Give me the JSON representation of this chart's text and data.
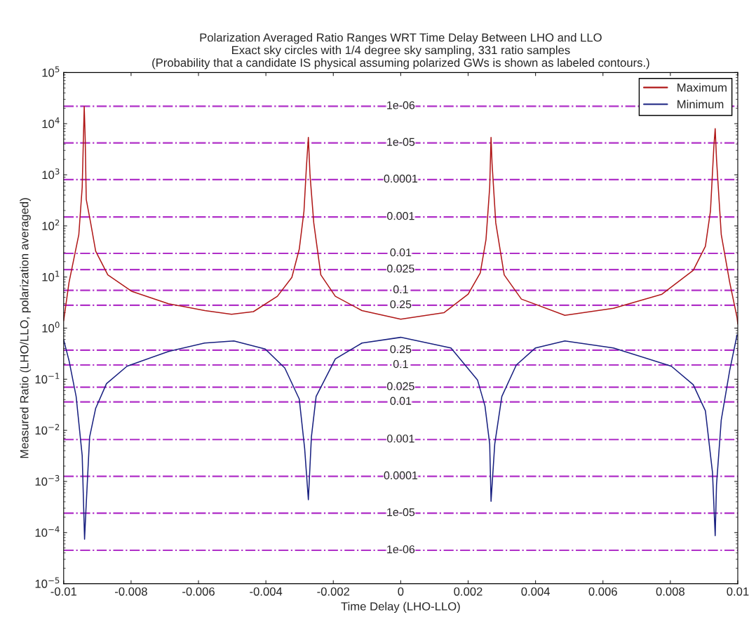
{
  "chart_data": {
    "type": "line",
    "title": "Polarization Averaged Ratio Ranges WRT Time Delay Between LHO and LLO",
    "subtitle": "Exact sky circles with 1/4 degree sky sampling, 331 ratio samples\n(Probability that a candidate IS physical assuming polarized GWs is shown as labeled contours.)",
    "xlabel": "Time Delay (LHO-LLO)",
    "ylabel": "Measured Ratio (LHO/LLO, polarization averaged)",
    "log": "y",
    "xlim": [
      -0.01,
      0.01
    ],
    "xticks": [
      -0.01,
      -0.008,
      -0.006,
      -0.004,
      -0.002,
      0,
      0.002,
      0.004,
      0.006,
      0.008,
      0.01
    ],
    "ylim": [
      1e-05,
      100000
    ],
    "yticks": [
      {
        "value": 1e-05,
        "label": "10$^{−5}$"
      },
      {
        "value": 0.0001,
        "label": "10$^{−4}$"
      },
      {
        "value": 0.001,
        "label": "10$^{−3}$"
      },
      {
        "value": 0.01,
        "label": "10$^{−2}$"
      },
      {
        "value": 0.1,
        "label": "10$^{−1}$"
      },
      {
        "value": 1,
        "label": "10$^{0}$"
      },
      {
        "value": 10,
        "label": "10$^{1}$"
      },
      {
        "value": 100,
        "label": "10$^{2}$"
      },
      {
        "value": 1000,
        "label": "10$^{3}$"
      },
      {
        "value": 10000,
        "label": "10$^{4}$"
      },
      {
        "value": 100000,
        "label": "10$^{5}$"
      }
    ],
    "grid": false,
    "annotations": [
      {
        "text": "1e-06",
        "y": 22000
      },
      {
        "text": "1e-05",
        "y": 4200
      },
      {
        "text": "0.0001",
        "y": 805
      },
      {
        "text": "0.001",
        "y": 150
      },
      {
        "text": "0.01",
        "y": 29
      },
      {
        "text": "0.025",
        "y": 14
      },
      {
        "text": "0.1",
        "y": 5.5
      },
      {
        "text": "0.25",
        "y": 2.8
      },
      {
        "text": "0.25",
        "y": 0.37
      },
      {
        "text": "0.1",
        "y": 0.19
      },
      {
        "text": "0.025",
        "y": 0.07
      },
      {
        "text": "0.01",
        "y": 0.036
      },
      {
        "text": "0.001",
        "y": 0.0066
      },
      {
        "text": "0.0001",
        "y": 0.00126
      },
      {
        "text": "1e-05",
        "y": 0.00024
      },
      {
        "text": "1e-06",
        "y": 4.5e-05
      }
    ],
    "legend": "top right",
    "series": [
      {
        "name": "Maximum",
        "color": "#b01818",
        "x": [
          -0.01,
          -0.00984,
          -0.00955,
          -0.00945,
          -0.00939,
          -0.00936,
          -0.00933,
          -0.0092,
          -0.00905,
          -0.00869,
          -0.00797,
          -0.00689,
          -0.00581,
          -0.00502,
          -0.00437,
          -0.00366,
          -0.00323,
          -0.00301,
          -0.00287,
          -0.0028,
          -0.00274,
          -0.00269,
          -0.00258,
          -0.00237,
          -0.00194,
          -0.00115,
          0.0,
          0.00128,
          0.002,
          0.00236,
          0.00253,
          0.00264,
          0.00268,
          0.00271,
          0.00282,
          0.00307,
          0.00358,
          0.00487,
          0.00631,
          0.00775,
          0.00868,
          0.00904,
          0.00919,
          0.00929,
          0.00933,
          0.00937,
          0.00951,
          0.00976,
          0.00998,
          0.01
        ],
        "values": [
          1.4,
          7.9,
          68,
          571,
          21700,
          4870,
          330,
          115,
          32,
          11,
          5.2,
          3.0,
          2.2,
          1.86,
          2.1,
          4.2,
          9.8,
          35,
          195,
          1350,
          5400,
          980,
          115,
          11,
          4.2,
          2.2,
          1.5,
          2.0,
          4.6,
          12,
          54,
          570,
          5400,
          1660,
          115,
          11,
          3.7,
          1.78,
          2.45,
          4.6,
          13.5,
          40,
          195,
          3520,
          8000,
          2000,
          68,
          7.9,
          1.6,
          1.2
        ]
      },
      {
        "name": "Minimum",
        "color": "#182080",
        "x": [
          -0.01,
          -0.00984,
          -0.00963,
          -0.00945,
          -0.00938,
          -0.00934,
          -0.00923,
          -0.00905,
          -0.00873,
          -0.00812,
          -0.00689,
          -0.00582,
          -0.00495,
          -0.00402,
          -0.00344,
          -0.00301,
          -0.00285,
          -0.00274,
          -0.00265,
          -0.00251,
          -0.00194,
          -0.00115,
          0.0,
          0.00149,
          0.00228,
          0.0025,
          0.00264,
          0.00268,
          0.00279,
          0.003,
          0.00343,
          0.004,
          0.00487,
          0.00631,
          0.00803,
          0.00868,
          0.00904,
          0.00925,
          0.00933,
          0.00937,
          0.00951,
          0.00976,
          0.00998
        ],
        "values": [
          0.59,
          0.23,
          0.046,
          0.0032,
          7.4e-05,
          0.00027,
          0.0074,
          0.027,
          0.082,
          0.18,
          0.35,
          0.51,
          0.56,
          0.39,
          0.166,
          0.041,
          0.0044,
          0.00044,
          0.0074,
          0.046,
          0.25,
          0.51,
          0.66,
          0.41,
          0.096,
          0.03,
          0.0054,
          0.00041,
          0.0054,
          0.046,
          0.19,
          0.41,
          0.56,
          0.41,
          0.18,
          0.078,
          0.024,
          0.0015,
          8.7e-05,
          0.00087,
          0.016,
          0.148,
          0.74
        ]
      }
    ],
    "ref_lines": [
      {
        "axis": "y",
        "value": 22000,
        "color": "#b030c8",
        "line_style": "dashdot"
      },
      {
        "axis": "y",
        "value": 4200,
        "color": "#b030c8",
        "line_style": "dashdot"
      },
      {
        "axis": "y",
        "value": 805,
        "color": "#b030c8",
        "line_style": "dashdot"
      },
      {
        "axis": "y",
        "value": 150,
        "color": "#b030c8",
        "line_style": "dashdot"
      },
      {
        "axis": "y",
        "value": 29,
        "color": "#b030c8",
        "line_style": "dashdot"
      },
      {
        "axis": "y",
        "value": 14,
        "color": "#b030c8",
        "line_style": "dashdot"
      },
      {
        "axis": "y",
        "value": 5.5,
        "color": "#b030c8",
        "line_style": "dashdot"
      },
      {
        "axis": "y",
        "value": 2.8,
        "color": "#b030c8",
        "line_style": "dashdot"
      },
      {
        "axis": "y",
        "value": 0.37,
        "color": "#b030c8",
        "line_style": "dashdot"
      },
      {
        "axis": "y",
        "value": 0.19,
        "color": "#b030c8",
        "line_style": "dashdot"
      },
      {
        "axis": "y",
        "value": 0.07,
        "color": "#b030c8",
        "line_style": "dashdot"
      },
      {
        "axis": "y",
        "value": 0.036,
        "color": "#b030c8",
        "line_style": "dashdot"
      },
      {
        "axis": "y",
        "value": 0.0066,
        "color": "#b030c8",
        "line_style": "dashdot"
      },
      {
        "axis": "y",
        "value": 0.00126,
        "color": "#b030c8",
        "line_style": "dashdot"
      },
      {
        "axis": "y",
        "value": 0.00024,
        "color": "#b030c8",
        "line_style": "dashdot"
      },
      {
        "axis": "y",
        "value": 4.5e-05,
        "color": "#b030c8",
        "line_style": "dashdot"
      }
    ]
  }
}
